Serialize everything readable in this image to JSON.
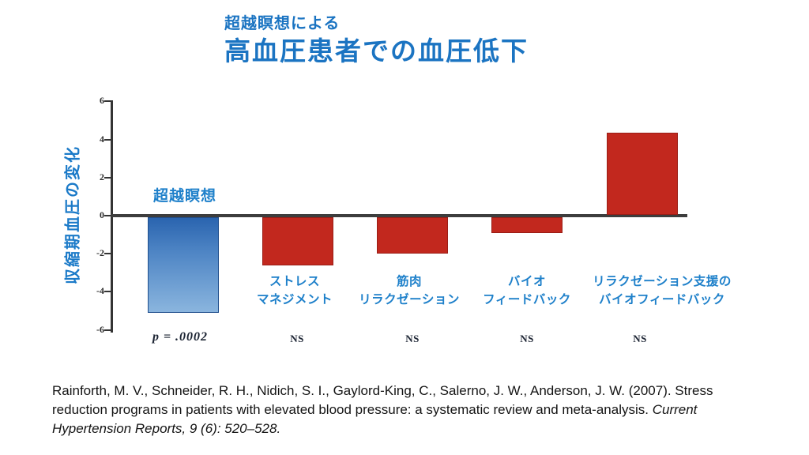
{
  "slide": {
    "subtitle": "超越瞑想による",
    "title": "高血圧患者での血圧低下",
    "citation_regular": "Rainforth, M. V., Schneider, R. H., Nidich, S. I., Gaylord-King, C., Salerno, J. W., Anderson, J. W. (2007). Stress reduction programs in patients with elevated blood pressure: a systematic review and meta-analysis. ",
    "citation_italic": "Current Hypertension Reports, 9 (6): 520–528."
  },
  "chart_data": {
    "type": "bar",
    "title": "高血圧患者での血圧低下",
    "subtitle": "超越瞑想による",
    "xlabel": "",
    "ylabel": "収縮期血圧の変化",
    "ylim": [
      -6,
      6
    ],
    "yticks": [
      6,
      4,
      2,
      0,
      -2,
      -4,
      -6
    ],
    "grid": false,
    "legend": false,
    "categories": [
      "超越瞑想",
      "ストレス\nマネジメント",
      "筋肉\nリラクゼーション",
      "バイオ\nフィードバック",
      "リラクゼーション支援の\nバイオフィードバック"
    ],
    "values": [
      -5.1,
      -2.6,
      -2.0,
      -0.9,
      4.3
    ],
    "significance": [
      "p = .0002",
      "NS",
      "NS",
      "NS",
      "NS"
    ],
    "bar_styles": [
      "blue-gradient",
      "red",
      "red",
      "red",
      "red"
    ],
    "colors": {
      "title_blue": "#1b74c2",
      "label_blue": "#1e80ca",
      "tm_bar_top": "#2a64af",
      "tm_bar_bottom": "#8ab5de",
      "control_bar_red": "#c2281e",
      "axis": "#3d3d3d",
      "significance_text": "#1c2433"
    }
  }
}
